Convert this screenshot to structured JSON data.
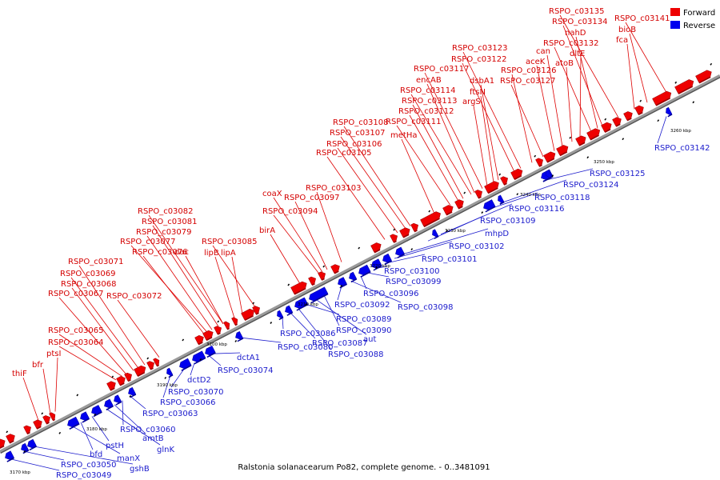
{
  "caption": "Ralstonia solanacearum Po82, complete genome. - 0..3481091",
  "legend": [
    {
      "label": "Forward",
      "color": "#ee0000"
    },
    {
      "label": "Reverse",
      "color": "#0000ee"
    }
  ],
  "ticks": [
    "3170 kbp",
    "3180 kbp",
    "3190 kbp",
    "3200 kbp",
    "3210 kbp",
    "3220 kbp",
    "3230 kbp",
    "3240 kbp",
    "3250 kbp",
    "3260 kbp"
  ],
  "forward_labels": [
    "thiF",
    "bfr",
    "ptsI",
    "RSPO_c03064",
    "RSPO_c03065",
    "RSPO_c03067",
    "RSPO_c03068",
    "RSPO_c03069",
    "RSPO_c03071",
    "RSPO_c03072",
    "RSPO_c03076",
    "RSPO_c03077",
    "RSPO_c03079",
    "RSPO_c03081",
    "RSPO_c03082",
    "dac",
    "lipB",
    "lipA",
    "RSPO_c03085",
    "birA",
    "RSPO_c03094",
    "coaX",
    "RSPO_c03097",
    "RSPO_c03103",
    "RSPO_c03105",
    "RSPO_c03106",
    "RSPO_c03107",
    "RSPO_c03108",
    "metHa",
    "RSPO_c03111",
    "RSPO_c03112",
    "RSPO_c03113",
    "RSPO_c03114",
    "encAB",
    "RSPO_c03117",
    "argS",
    "ftsN",
    "dsbA1",
    "RSPO_c03122",
    "RSPO_c03123",
    "RSPO_c03126",
    "RSPO_c03127",
    "aceK",
    "can",
    "atoB",
    "dltE",
    "RSPO_c03132",
    "nahD",
    "RSPO_c03134",
    "RSPO_c03135",
    "fca",
    "bioB",
    "RSPO_c03141"
  ],
  "reverse_labels": [
    "RSPO_c03049",
    "RSPO_c03050",
    "gshB",
    "manX",
    "bfd",
    "pstH",
    "glnK",
    "amtB",
    "RSPO_c03060",
    "RSPO_c03063",
    "RSPO_c03066",
    "RSPO_c03070",
    "dctD2",
    "RSPO_c03074",
    "dctA1",
    "RSPO_c03080",
    "RSPO_c03086",
    "RSPO_c03087",
    "RSPO_c03088",
    "RSPO_c03089",
    "aut",
    "RSPO_c03090",
    "RSPO_c03092",
    "RSPO_c03098",
    "RSPO_c03096",
    "RSPO_c03099",
    "RSPO_c03100",
    "RSPO_c03101",
    "RSPO_c03102",
    "mhpD",
    "RSPO_c03109",
    "RSPO_c03116",
    "RSPO_c03118",
    "RSPO_c03124",
    "RSPO_c03125",
    "RSPO_c03142"
  ]
}
